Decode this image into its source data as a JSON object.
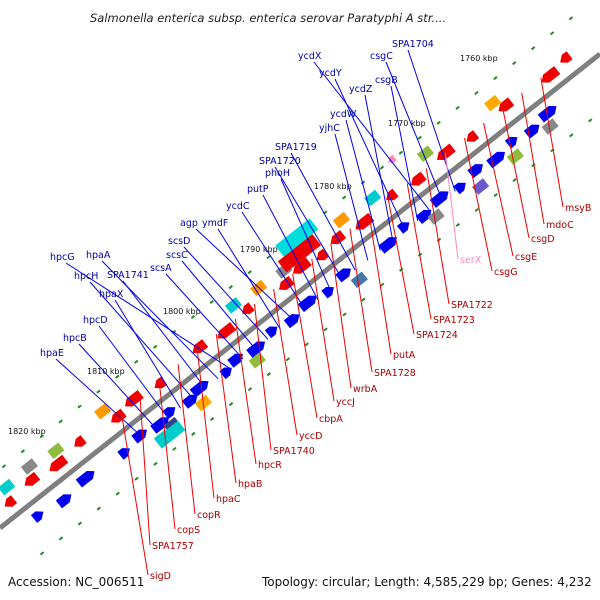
{
  "title": "Salmonella enterica subsp. enterica serovar Paratyphi A str....",
  "accession": "Accession: NC_006511",
  "topology": "Topology: circular; Length: 4,585,229 bp; Genes: 4,232",
  "colors": {
    "forward": "#0000ee",
    "reverse": "#ee0000",
    "rna": "#ff88bb",
    "backbone": "#808080",
    "tick": "#228b22"
  },
  "ticks": [
    "1760 kbp",
    "1770 kbp",
    "1780 kbp",
    "1790 kbp",
    "1800 kbp",
    "1810 kbp",
    "1820 kbp"
  ],
  "labels_forward": [
    "SPA1704",
    "csgC",
    "ycdX",
    "csgB",
    "ycdY",
    "ycdZ",
    "ycdW",
    "yjhC",
    "SPA1719",
    "SPA1720",
    "phoH",
    "putP",
    "ycdC",
    "agp",
    "ymdF",
    "scsD",
    "scsC",
    "scsA",
    "hpcG",
    "hpaA",
    "SPA1741",
    "hpcH",
    "hpaX",
    "hpcD",
    "hpcB",
    "hpaE"
  ],
  "labels_reverse": [
    "msyB",
    "mdoC",
    "csgD",
    "csgE",
    "csgG",
    "serX",
    "SPA1722",
    "SPA1723",
    "SPA1724",
    "putA",
    "SPA1728",
    "wrbA",
    "yccJ",
    "cbpA",
    "yccD",
    "SPA1740",
    "hpcR",
    "hpaB",
    "hpaC",
    "copR",
    "copS",
    "SPA1757",
    "sigD"
  ]
}
